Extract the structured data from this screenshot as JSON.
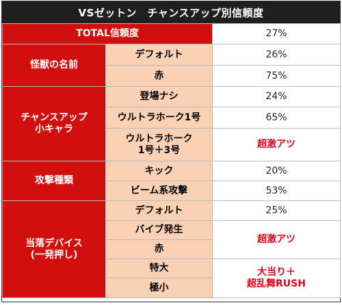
{
  "title": "VSゼットン　チャンスアップ別信頼度",
  "total": {
    "label": "TOTAL信頼度",
    "value": "27%"
  },
  "groups": {
    "kaiju": {
      "label": "怪獣の名前",
      "rows": [
        {
          "label": "デフォルト",
          "value": "26%"
        },
        {
          "label": "赤",
          "value": "75%"
        }
      ]
    },
    "chance": {
      "label_line1": "チャンスアップ",
      "label_line2": "小キャラ",
      "rows": [
        {
          "label": "登場ナシ",
          "value": "24%"
        },
        {
          "label": "ウルトラホーク1号",
          "value": "65%"
        },
        {
          "label_line1": "ウルトラホーク",
          "label_line2": "1号＋3号",
          "value": "超激アツ"
        }
      ]
    },
    "attack": {
      "label": "攻撃種類",
      "rows": [
        {
          "label": "キック",
          "value": "20%"
        },
        {
          "label": "ビーム系攻撃",
          "value": "53%"
        }
      ]
    },
    "device": {
      "label_line1": "当落デバイス",
      "label_line2": "(一発押し)",
      "rows": [
        {
          "label": "デフォルト",
          "value": "25%"
        },
        {
          "label": "バイブ発生"
        },
        {
          "label": "赤"
        },
        {
          "label": "特大"
        },
        {
          "label": "極小"
        }
      ],
      "merged_value_1": "超激アツ",
      "merged_value_2_line1": "大当り＋",
      "merged_value_2_line2": "超乱舞RUSH"
    }
  },
  "colors": {
    "header_bg": "#1f1f1f",
    "category_red": "#d10f0f",
    "sub_peach": "#fbd1b6",
    "hot_text": "#e2001a"
  }
}
